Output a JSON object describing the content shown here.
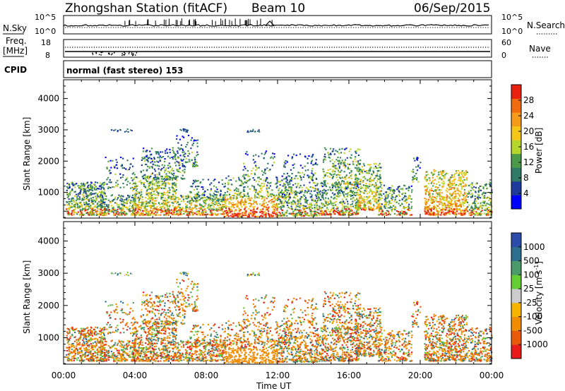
{
  "header": {
    "station": "Zhongshan Station (fitACF)",
    "beam": "Beam 10",
    "date": "06/Sep/2015"
  },
  "colors": {
    "power_scale": [
      "#0000ff",
      "#1e3a9a",
      "#2e7a66",
      "#4a9a4a",
      "#b7d62c",
      "#f5c518",
      "#f59a1a",
      "#f06a0e",
      "#e82010"
    ],
    "velocity_scale": [
      "#2b4ca8",
      "#2e6e8e",
      "#4a9a6a",
      "#66cc33",
      "#cccccc",
      "#f5b400",
      "#f08c00",
      "#e85a0a",
      "#e81a1a"
    ]
  },
  "chart_data": [
    {
      "type": "line",
      "name_left": "N.Sky",
      "name_right": "N.Search",
      "y_ticks_left": [
        "10^5",
        "10^0"
      ],
      "y_ticks_right": [
        "10^5",
        "10^0"
      ],
      "legend_right": "N.Search ·······"
    },
    {
      "type": "line",
      "name_left": "Freq. [MHz]",
      "name_right": "Nave",
      "y_ticks_left": [
        "18",
        "8"
      ],
      "y_ticks_right": [
        "60",
        "0"
      ],
      "legend_right": "Nave ····"
    },
    {
      "type": "table",
      "label": "CPID",
      "value": "normal (fast stereo) 153"
    },
    {
      "type": "heatmap",
      "quantity": "power",
      "ylabel": "Slant Range [km]",
      "ylim": [
        180,
        4600
      ],
      "y_ticks": [
        "4000",
        "3000",
        "2000",
        "1000"
      ],
      "colorbar_label": "Power [dB]",
      "colorbar_ticks": [
        "28",
        "24",
        "20",
        "16",
        "12",
        "8",
        "4"
      ],
      "colorbar_range": [
        0,
        32
      ]
    },
    {
      "type": "heatmap",
      "quantity": "velocity",
      "ylabel": "Slant Range [km]",
      "ylim": [
        180,
        4600
      ],
      "y_ticks": [
        "4000",
        "3000",
        "2000",
        "1000"
      ],
      "colorbar_label": "Velocity [m s^-1]",
      "colorbar_ticks": [
        "1000",
        "500",
        "100",
        "25",
        "-25",
        "-100",
        "-500",
        "-1000"
      ],
      "x_ticks": [
        "00:00",
        "04:00",
        "08:00",
        "12:00",
        "16:00",
        "20:00",
        "00:00"
      ],
      "xlabel": "Time UT"
    }
  ]
}
